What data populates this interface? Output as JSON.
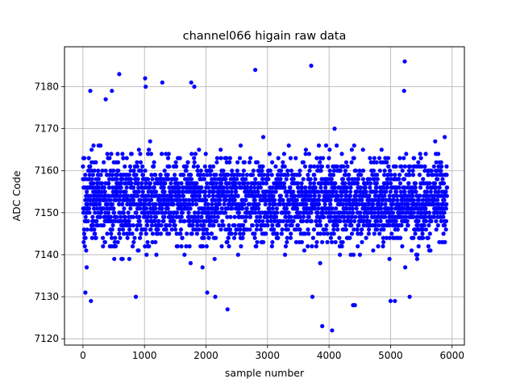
{
  "chart_data": {
    "type": "scatter",
    "title": "channel066 higain raw data",
    "xlabel": "sample number",
    "ylabel": "ADC Code",
    "xlim": [
      -300,
      6200
    ],
    "ylim": [
      7118.5,
      7189.5
    ],
    "x_ticks": [
      0,
      1000,
      2000,
      3000,
      4000,
      5000,
      6000
    ],
    "y_ticks": [
      7120,
      7130,
      7140,
      7150,
      7160,
      7170,
      7180
    ],
    "x_tick_labels": [
      "0",
      "1000",
      "2000",
      "3000",
      "4000",
      "5000",
      "6000"
    ],
    "y_tick_labels": [
      "7120",
      "7130",
      "7140",
      "7150",
      "7160",
      "7170",
      "7180"
    ],
    "grid": true,
    "marker_color": "#0000ff",
    "n_samples": 5920,
    "mean": 7153,
    "typical_spread": [
      7136,
      7171
    ],
    "outliers": [
      {
        "x": 40,
        "y": 7131
      },
      {
        "x": 130,
        "y": 7129
      },
      {
        "x": 120,
        "y": 7179
      },
      {
        "x": 370,
        "y": 7177
      },
      {
        "x": 470,
        "y": 7179
      },
      {
        "x": 590,
        "y": 7183
      },
      {
        "x": 860,
        "y": 7130
      },
      {
        "x": 1010,
        "y": 7182
      },
      {
        "x": 1020,
        "y": 7180
      },
      {
        "x": 1290,
        "y": 7181
      },
      {
        "x": 1760,
        "y": 7181
      },
      {
        "x": 1810,
        "y": 7180
      },
      {
        "x": 2020,
        "y": 7131
      },
      {
        "x": 2150,
        "y": 7130
      },
      {
        "x": 2350,
        "y": 7127
      },
      {
        "x": 2800,
        "y": 7184
      },
      {
        "x": 3710,
        "y": 7185
      },
      {
        "x": 3730,
        "y": 7130
      },
      {
        "x": 3890,
        "y": 7123
      },
      {
        "x": 4050,
        "y": 7122
      },
      {
        "x": 4390,
        "y": 7128
      },
      {
        "x": 4420,
        "y": 7128
      },
      {
        "x": 5000,
        "y": 7129
      },
      {
        "x": 5070,
        "y": 7129
      },
      {
        "x": 5230,
        "y": 7186
      },
      {
        "x": 5220,
        "y": 7179
      },
      {
        "x": 5310,
        "y": 7130
      }
    ]
  }
}
